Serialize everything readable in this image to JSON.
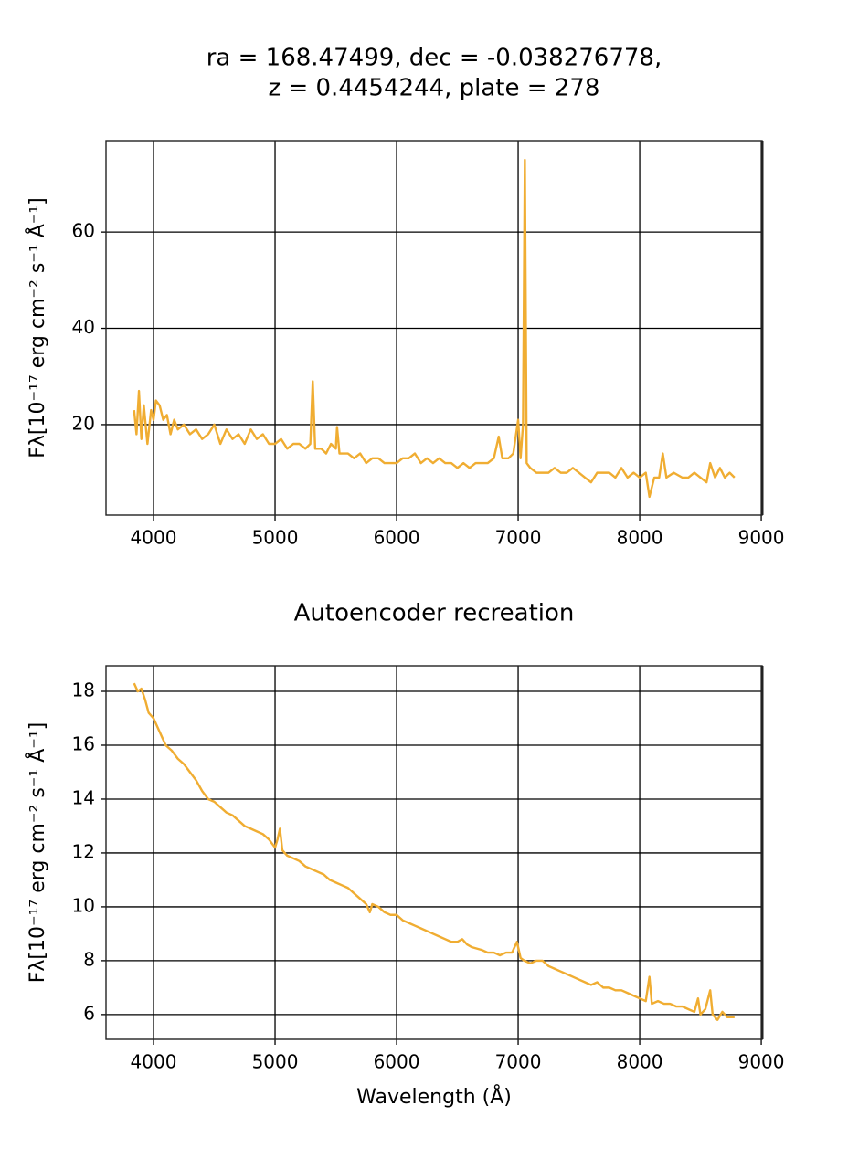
{
  "chart_data": [
    {
      "type": "line",
      "title": [
        "ra = 168.47499, dec = -0.038276778,",
        "z = 0.4454244, plate = 278"
      ],
      "y_label": "Fλ[10⁻¹⁷ erg cm⁻² s⁻¹ Å⁻¹]",
      "color": "#f0ad32",
      "grid": true,
      "xlim": [
        3609,
        9007
      ],
      "ylim": [
        1.2,
        79
      ],
      "xticks": [
        4000,
        5000,
        6000,
        7000,
        8000,
        9000
      ],
      "yticks": [
        20,
        40,
        60
      ],
      "x": [
        3840,
        3860,
        3880,
        3900,
        3920,
        3950,
        3980,
        4000,
        4020,
        4050,
        4080,
        4110,
        4140,
        4170,
        4200,
        4250,
        4300,
        4350,
        4400,
        4450,
        4500,
        4550,
        4600,
        4650,
        4700,
        4750,
        4800,
        4850,
        4900,
        4950,
        5000,
        5050,
        5100,
        5150,
        5200,
        5250,
        5290,
        5310,
        5330,
        5380,
        5420,
        5460,
        5500,
        5510,
        5530,
        5600,
        5650,
        5700,
        5750,
        5800,
        5850,
        5900,
        5950,
        6000,
        6050,
        6100,
        6150,
        6200,
        6250,
        6300,
        6350,
        6400,
        6450,
        6500,
        6550,
        6600,
        6650,
        6700,
        6750,
        6800,
        6840,
        6870,
        6920,
        6960,
        7000,
        7020,
        7040,
        7055,
        7070,
        7100,
        7150,
        7200,
        7250,
        7300,
        7350,
        7400,
        7450,
        7500,
        7550,
        7600,
        7650,
        7700,
        7750,
        7800,
        7850,
        7900,
        7950,
        8000,
        8050,
        8080,
        8120,
        8160,
        8190,
        8220,
        8280,
        8350,
        8400,
        8450,
        8500,
        8550,
        8580,
        8620,
        8660,
        8700,
        8740,
        8780
      ],
      "values": [
        23,
        18,
        27,
        17,
        24,
        16,
        23,
        21,
        25,
        24,
        21,
        22,
        18,
        21,
        19,
        20,
        18,
        19,
        17,
        18,
        20,
        16,
        19,
        17,
        18,
        16,
        19,
        17,
        18,
        16,
        16,
        17,
        15,
        16,
        16,
        15,
        16,
        29,
        15,
        15,
        14,
        16,
        15,
        19.5,
        14,
        14,
        13,
        14,
        12,
        13,
        13,
        12,
        12,
        12,
        13,
        13,
        14,
        12,
        13,
        12,
        13,
        12,
        12,
        11,
        12,
        11,
        12,
        12,
        12,
        13,
        17.5,
        13,
        13,
        14,
        21,
        13,
        20,
        75,
        12,
        11,
        10,
        10,
        10,
        11,
        10,
        10,
        11,
        10,
        9,
        8,
        10,
        10,
        10,
        9,
        11,
        9,
        10,
        9,
        10,
        5,
        9,
        9,
        14,
        9,
        10,
        9,
        9,
        10,
        9,
        8,
        12,
        9,
        11,
        9,
        10,
        9
      ]
    },
    {
      "type": "line",
      "title": "Autoencoder recreation",
      "y_label": "Fλ[10⁻¹⁷ erg cm⁻² s⁻¹ Å⁻¹]",
      "x_label": "Wavelength (Å)",
      "color": "#f0ad32",
      "grid": true,
      "xlim": [
        3609,
        9007
      ],
      "ylim": [
        5.08,
        18.95
      ],
      "xticks": [
        4000,
        5000,
        6000,
        7000,
        8000,
        9000
      ],
      "yticks": [
        6,
        8,
        10,
        12,
        14,
        16,
        18
      ],
      "x": [
        3840,
        3870,
        3900,
        3930,
        3960,
        4000,
        4050,
        4100,
        4150,
        4200,
        4250,
        4300,
        4350,
        4400,
        4450,
        4500,
        4550,
        4600,
        4650,
        4700,
        4750,
        4800,
        4850,
        4900,
        4950,
        5000,
        5020,
        5040,
        5060,
        5100,
        5150,
        5200,
        5250,
        5300,
        5350,
        5400,
        5450,
        5500,
        5550,
        5600,
        5650,
        5700,
        5750,
        5780,
        5800,
        5850,
        5900,
        5950,
        6000,
        6050,
        6100,
        6150,
        6200,
        6250,
        6300,
        6350,
        6400,
        6450,
        6500,
        6540,
        6580,
        6620,
        6700,
        6750,
        6800,
        6850,
        6900,
        6950,
        6990,
        7020,
        7050,
        7100,
        7150,
        7200,
        7250,
        7300,
        7350,
        7400,
        7450,
        7500,
        7550,
        7600,
        7650,
        7700,
        7750,
        7800,
        7850,
        7900,
        7950,
        8000,
        8050,
        8080,
        8100,
        8150,
        8200,
        8250,
        8300,
        8350,
        8400,
        8450,
        8480,
        8500,
        8540,
        8580,
        8600,
        8640,
        8680,
        8720,
        8780
      ],
      "values": [
        18.3,
        18.0,
        18.1,
        17.7,
        17.2,
        17.0,
        16.5,
        16.0,
        15.8,
        15.5,
        15.3,
        15.0,
        14.7,
        14.3,
        14.0,
        13.9,
        13.7,
        13.5,
        13.4,
        13.2,
        13.0,
        12.9,
        12.8,
        12.7,
        12.5,
        12.2,
        12.5,
        12.9,
        12.1,
        11.9,
        11.8,
        11.7,
        11.5,
        11.4,
        11.3,
        11.2,
        11.0,
        10.9,
        10.8,
        10.7,
        10.5,
        10.3,
        10.1,
        9.8,
        10.1,
        10.0,
        9.8,
        9.7,
        9.7,
        9.5,
        9.4,
        9.3,
        9.2,
        9.1,
        9.0,
        8.9,
        8.8,
        8.7,
        8.7,
        8.8,
        8.6,
        8.5,
        8.4,
        8.3,
        8.3,
        8.2,
        8.3,
        8.3,
        8.7,
        8.1,
        8.0,
        7.9,
        8.0,
        8.0,
        7.8,
        7.7,
        7.6,
        7.5,
        7.4,
        7.3,
        7.2,
        7.1,
        7.2,
        7.0,
        7.0,
        6.9,
        6.9,
        6.8,
        6.7,
        6.6,
        6.5,
        7.4,
        6.4,
        6.5,
        6.4,
        6.4,
        6.3,
        6.3,
        6.2,
        6.1,
        6.6,
        6.0,
        6.2,
        6.9,
        6.0,
        5.8,
        6.1,
        5.9,
        5.9
      ]
    }
  ]
}
